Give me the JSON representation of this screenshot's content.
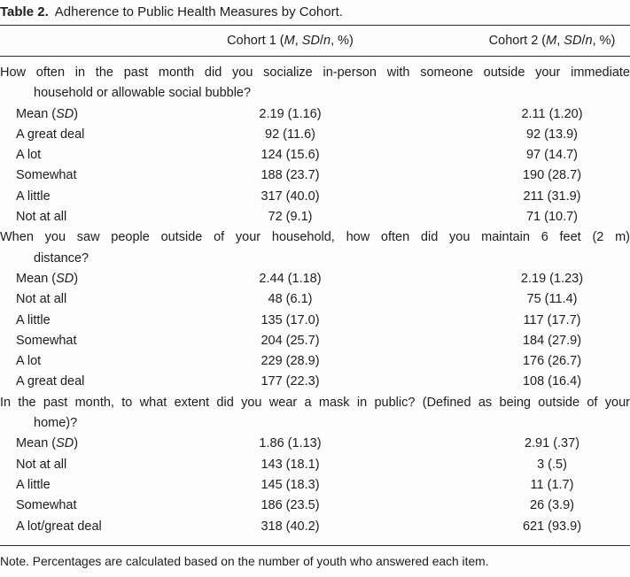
{
  "page": {
    "background_color": "#fdfdfd",
    "text_color": "#1d1d1f",
    "rule_color": "#2c2c2c"
  },
  "title": {
    "label": "Table 2.",
    "text": "Adherence to Public Health Measures by Cohort."
  },
  "columns": [
    {
      "label": "Cohort 1 (M, SD/n, %)",
      "html": "Cohort 1 (<i>M</i>, <i>SD</i>/<i>n</i>, %)"
    },
    {
      "label": "Cohort 2 (M, SD/n, %)",
      "html": "Cohort 2 (<i>M</i>, <i>SD</i>/<i>n</i>, %)"
    }
  ],
  "sections": [
    {
      "question": "How often in the past month did you socialize in-person with someone outside your immediate household or allowable social bubble?",
      "question_lines": [
        "How often in the past month did you socialize in-person with someone outside your immediate",
        "household or allowable social bubble?"
      ],
      "rows": [
        {
          "label": "Mean (SD)",
          "label_html": "Mean (<i>SD</i>)",
          "cohort1": "2.19 (1.16)",
          "cohort2": "2.11 (1.20)"
        },
        {
          "label": "A great deal",
          "label_html": "A great deal",
          "cohort1": "92 (11.6)",
          "cohort2": "92 (13.9)"
        },
        {
          "label": "A lot",
          "label_html": "A lot",
          "cohort1": "124 (15.6)",
          "cohort2": "97 (14.7)"
        },
        {
          "label": "Somewhat",
          "label_html": "Somewhat",
          "cohort1": "188 (23.7)",
          "cohort2": "190 (28.7)"
        },
        {
          "label": "A little",
          "label_html": "A little",
          "cohort1": "317 (40.0)",
          "cohort2": "211 (31.9)"
        },
        {
          "label": "Not at all",
          "label_html": "Not at all",
          "cohort1": "72 (9.1)",
          "cohort2": "71 (10.7)"
        }
      ]
    },
    {
      "question": "When you saw people outside of your household, how often did you maintain 6 feet (2 m) distance?",
      "question_lines": [
        "When you saw people outside of your household, how often did you maintain 6 feet (2 m)",
        "distance?"
      ],
      "rows": [
        {
          "label": "Mean (SD)",
          "label_html": "Mean (<i>SD</i>)",
          "cohort1": "2.44 (1.18)",
          "cohort2": "2.19 (1.23)"
        },
        {
          "label": "Not at all",
          "label_html": "Not at all",
          "cohort1": "48 (6.1)",
          "cohort2": "75 (11.4)"
        },
        {
          "label": "A little",
          "label_html": "A little",
          "cohort1": "135 (17.0)",
          "cohort2": "117 (17.7)"
        },
        {
          "label": "Somewhat",
          "label_html": "Somewhat",
          "cohort1": "204 (25.7)",
          "cohort2": "184 (27.9)"
        },
        {
          "label": "A lot",
          "label_html": "A lot",
          "cohort1": "229 (28.9)",
          "cohort2": "176 (26.7)"
        },
        {
          "label": "A great deal",
          "label_html": "A great deal",
          "cohort1": "177 (22.3)",
          "cohort2": "108 (16.4)"
        }
      ]
    },
    {
      "question": "In the past month, to what extent did you wear a mask in public? (Defined as being outside of your home)?",
      "question_lines": [
        "In the past month, to what extent did you wear a mask in public? (Defined as being outside of your",
        "home)?"
      ],
      "rows": [
        {
          "label": "Mean (SD)",
          "label_html": "Mean (<i>SD</i>)",
          "cohort1": "1.86 (1.13)",
          "cohort2": "2.91 (.37)"
        },
        {
          "label": "Not at all",
          "label_html": "Not at all",
          "cohort1": "143 (18.1)",
          "cohort2": "3 (.5)"
        },
        {
          "label": "A little",
          "label_html": "A little",
          "cohort1": "145 (18.3)",
          "cohort2": "11 (1.7)"
        },
        {
          "label": "Somewhat",
          "label_html": "Somewhat",
          "cohort1": "186 (23.5)",
          "cohort2": "26 (3.9)"
        },
        {
          "label": "A lot/great deal",
          "label_html": "A lot/great deal",
          "cohort1": "318 (40.2)",
          "cohort2": "621 (93.9)"
        }
      ]
    }
  ],
  "note": "Note. Percentages are calculated based on the number of youth who answered each item."
}
